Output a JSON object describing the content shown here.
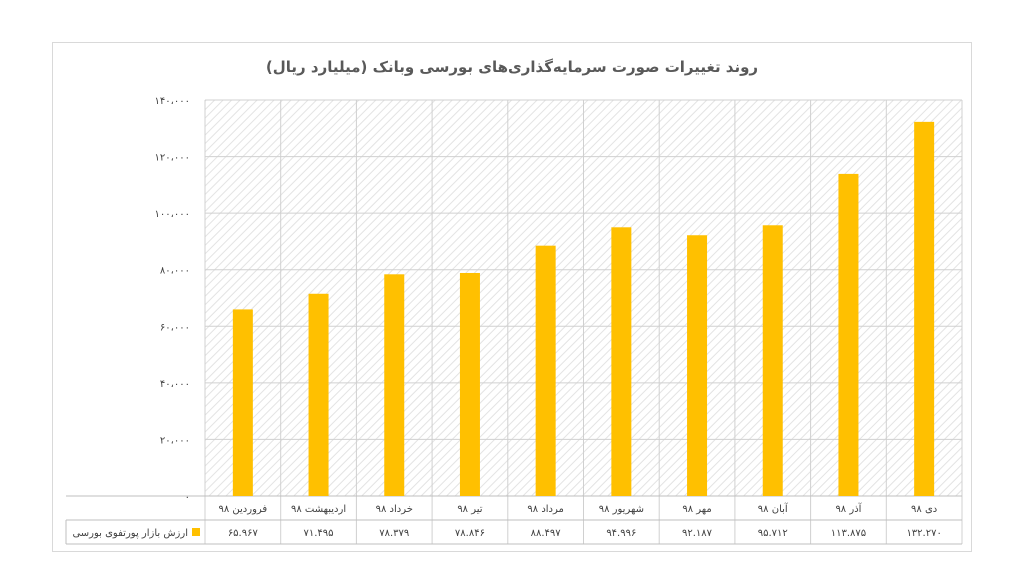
{
  "chart_data": {
    "type": "bar",
    "title": "روند تغییرات صورت سرمایه‌گذاری‌های بورسی وبانک (میلیارد ریال)",
    "xlabel": "",
    "ylabel": "",
    "ylim": [
      0,
      140000
    ],
    "y_ticks": [
      {
        "value": 0,
        "label": "۰"
      },
      {
        "value": 20000,
        "label": "۲۰،۰۰۰"
      },
      {
        "value": 40000,
        "label": "۴۰،۰۰۰"
      },
      {
        "value": 60000,
        "label": "۶۰،۰۰۰"
      },
      {
        "value": 80000,
        "label": "۸۰،۰۰۰"
      },
      {
        "value": 100000,
        "label": "۱۰۰،۰۰۰"
      },
      {
        "value": 120000,
        "label": "۱۲۰،۰۰۰"
      },
      {
        "value": 140000,
        "label": "۱۴۰،۰۰۰"
      }
    ],
    "categories": [
      "فروردین ۹۸",
      "اردیبهشت ۹۸",
      "خرداد ۹۸",
      "تیر ۹۸",
      "مرداد ۹۸",
      "شهریور ۹۸",
      "مهر ۹۸",
      "آبان ۹۸",
      "آذر ۹۸",
      "دی ۹۸"
    ],
    "series": [
      {
        "name": "ارزش بازار پورتفوی بورسی",
        "color": "#FFC000",
        "values": [
          65967,
          71495,
          78379,
          78846,
          88497,
          94996,
          92187,
          95712,
          113875,
          132270
        ],
        "value_labels": [
          "۶۵.۹۶۷",
          "۷۱.۴۹۵",
          "۷۸.۳۷۹",
          "۷۸.۸۴۶",
          "۸۸.۴۹۷",
          "۹۴.۹۹۶",
          "۹۲.۱۸۷",
          "۹۵.۷۱۲",
          "۱۱۳.۸۷۵",
          "۱۳۲.۲۷۰"
        ]
      }
    ],
    "grid": true,
    "legend": "data-table-left"
  }
}
